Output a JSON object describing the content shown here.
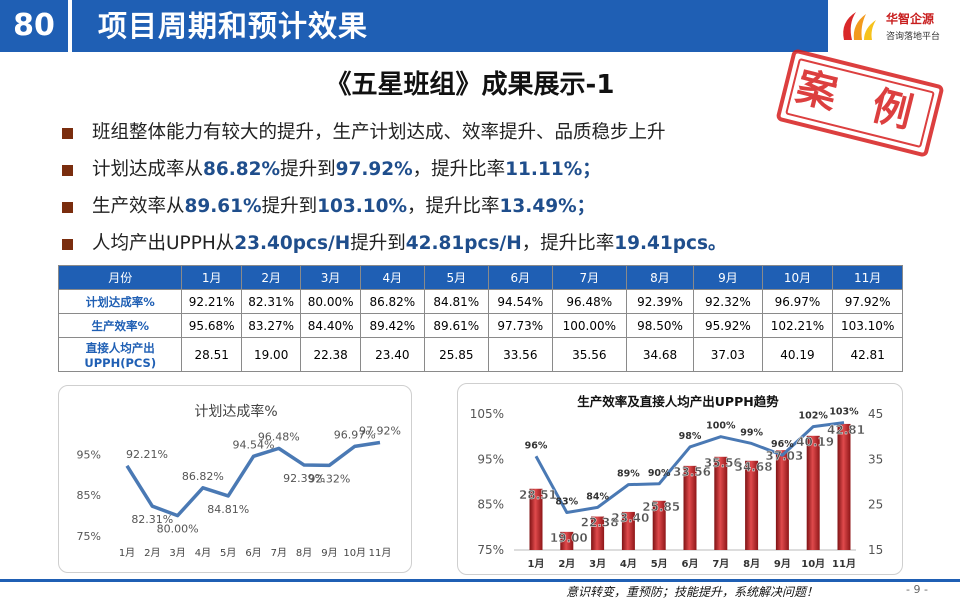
{
  "header": {
    "number": "80",
    "title": "项目周期和预计效果",
    "logo_name": "华智企源",
    "logo_sub": "咨询落地平台"
  },
  "stamp": "案 例",
  "main_title": "《五星班组》成果展示-1",
  "bullets": [
    {
      "parts": [
        {
          "t": "班组整体能力有较大的提升，生产计划达成、效率提升、品质稳步上升",
          "hl": false
        }
      ]
    },
    {
      "parts": [
        {
          "t": "计划达成率从",
          "hl": false
        },
        {
          "t": "86.82%",
          "hl": true
        },
        {
          "t": "提升到",
          "hl": false
        },
        {
          "t": "97.92%",
          "hl": true
        },
        {
          "t": "，提升比率",
          "hl": false
        },
        {
          "t": "11.11%；",
          "hl": true
        }
      ]
    },
    {
      "parts": [
        {
          "t": "生产效率从",
          "hl": false
        },
        {
          "t": "89.61%",
          "hl": true
        },
        {
          "t": "提升到",
          "hl": false
        },
        {
          "t": "103.10%",
          "hl": true
        },
        {
          "t": "，提升比率",
          "hl": false
        },
        {
          "t": "13.49%；",
          "hl": true
        }
      ]
    },
    {
      "parts": [
        {
          "t": "人均产出UPPH从",
          "hl": false
        },
        {
          "t": "23.40pcs/H",
          "hl": true
        },
        {
          "t": "提升到",
          "hl": false
        },
        {
          "t": "42.81pcs/H",
          "hl": true
        },
        {
          "t": "，提升比率",
          "hl": false
        },
        {
          "t": "19.41pcs。",
          "hl": true
        }
      ]
    }
  ],
  "table": {
    "header": [
      "月份",
      "1月",
      "2月",
      "3月",
      "4月",
      "5月",
      "6月",
      "7月",
      "8月",
      "9月",
      "10月",
      "11月"
    ],
    "rows": [
      {
        "label": "计划达成率%",
        "cells": [
          "92.21%",
          "82.31%",
          "80.00%",
          "86.82%",
          "84.81%",
          "94.54%",
          "96.48%",
          "92.39%",
          "92.32%",
          "96.97%",
          "97.92%"
        ]
      },
      {
        "label": "生产效率%",
        "cells": [
          "95.68%",
          "83.27%",
          "84.40%",
          "89.42%",
          "89.61%",
          "97.73%",
          "100.00%",
          "98.50%",
          "95.92%",
          "102.21%",
          "103.10%"
        ]
      },
      {
        "label": "直接人均产出UPPH(PCS)",
        "cells": [
          "28.51",
          "19.00",
          "22.38",
          "23.40",
          "25.85",
          "33.56",
          "35.56",
          "34.68",
          "37.03",
          "40.19",
          "42.81"
        ]
      }
    ]
  },
  "chart_data": [
    {
      "type": "line",
      "title": "计划达成率%",
      "categories": [
        "1月",
        "2月",
        "3月",
        "4月",
        "5月",
        "6月",
        "7月",
        "8月",
        "9月",
        "10月",
        "11月"
      ],
      "values": [
        92.21,
        82.31,
        80.0,
        86.82,
        84.81,
        94.54,
        96.48,
        92.39,
        92.32,
        96.97,
        97.92
      ],
      "data_labels": [
        "92.21%",
        "82.31%",
        "80.00%",
        "86.82%",
        "84.81%",
        "94.54%",
        "96.48%",
        "92.39%",
        "92.32%",
        "96.97%",
        "97.92%"
      ],
      "yticks": [
        "75%",
        "85%",
        "95%"
      ],
      "ylim": [
        75,
        100
      ],
      "grid": false,
      "color": "#4a79b4"
    },
    {
      "type": "bar",
      "title": "生产效率及直接人均产出UPPH趋势",
      "categories": [
        "1月",
        "2月",
        "3月",
        "4月",
        "5月",
        "6月",
        "7月",
        "8月",
        "9月",
        "10月",
        "11月"
      ],
      "bar_series": {
        "values": [
          28.51,
          19.0,
          22.38,
          23.4,
          25.85,
          33.56,
          35.56,
          34.68,
          37.03,
          40.19,
          42.81
        ],
        "data_labels": [
          "28.51",
          "19.00",
          "22.38",
          "23.40",
          "25.85",
          "33.56",
          "35.56",
          "34.68",
          "37.03",
          "40.19",
          "42.81"
        ],
        "axis": "right",
        "ylim": [
          15,
          45
        ],
        "yticks": [
          "15",
          "25",
          "35",
          "45"
        ],
        "color": "#c0282a"
      },
      "line_series": {
        "values": [
          95.68,
          83.27,
          84.4,
          89.42,
          89.61,
          97.73,
          100.0,
          98.5,
          95.92,
          102.21,
          103.1
        ],
        "data_labels": [
          "96%",
          "83%",
          "84%",
          "89%",
          "90%",
          "98%",
          "100%",
          "99%",
          "96%",
          "102%",
          "103%"
        ],
        "axis": "left",
        "ylim": [
          75,
          105
        ],
        "yticks": [
          "75%",
          "85%",
          "95%",
          "105%"
        ],
        "color": "#4a79b4"
      },
      "grid": false
    }
  ],
  "footer": {
    "slogan": "意识转变，重预防；技能提升，系统解决问题！",
    "page": "- 9 -"
  }
}
